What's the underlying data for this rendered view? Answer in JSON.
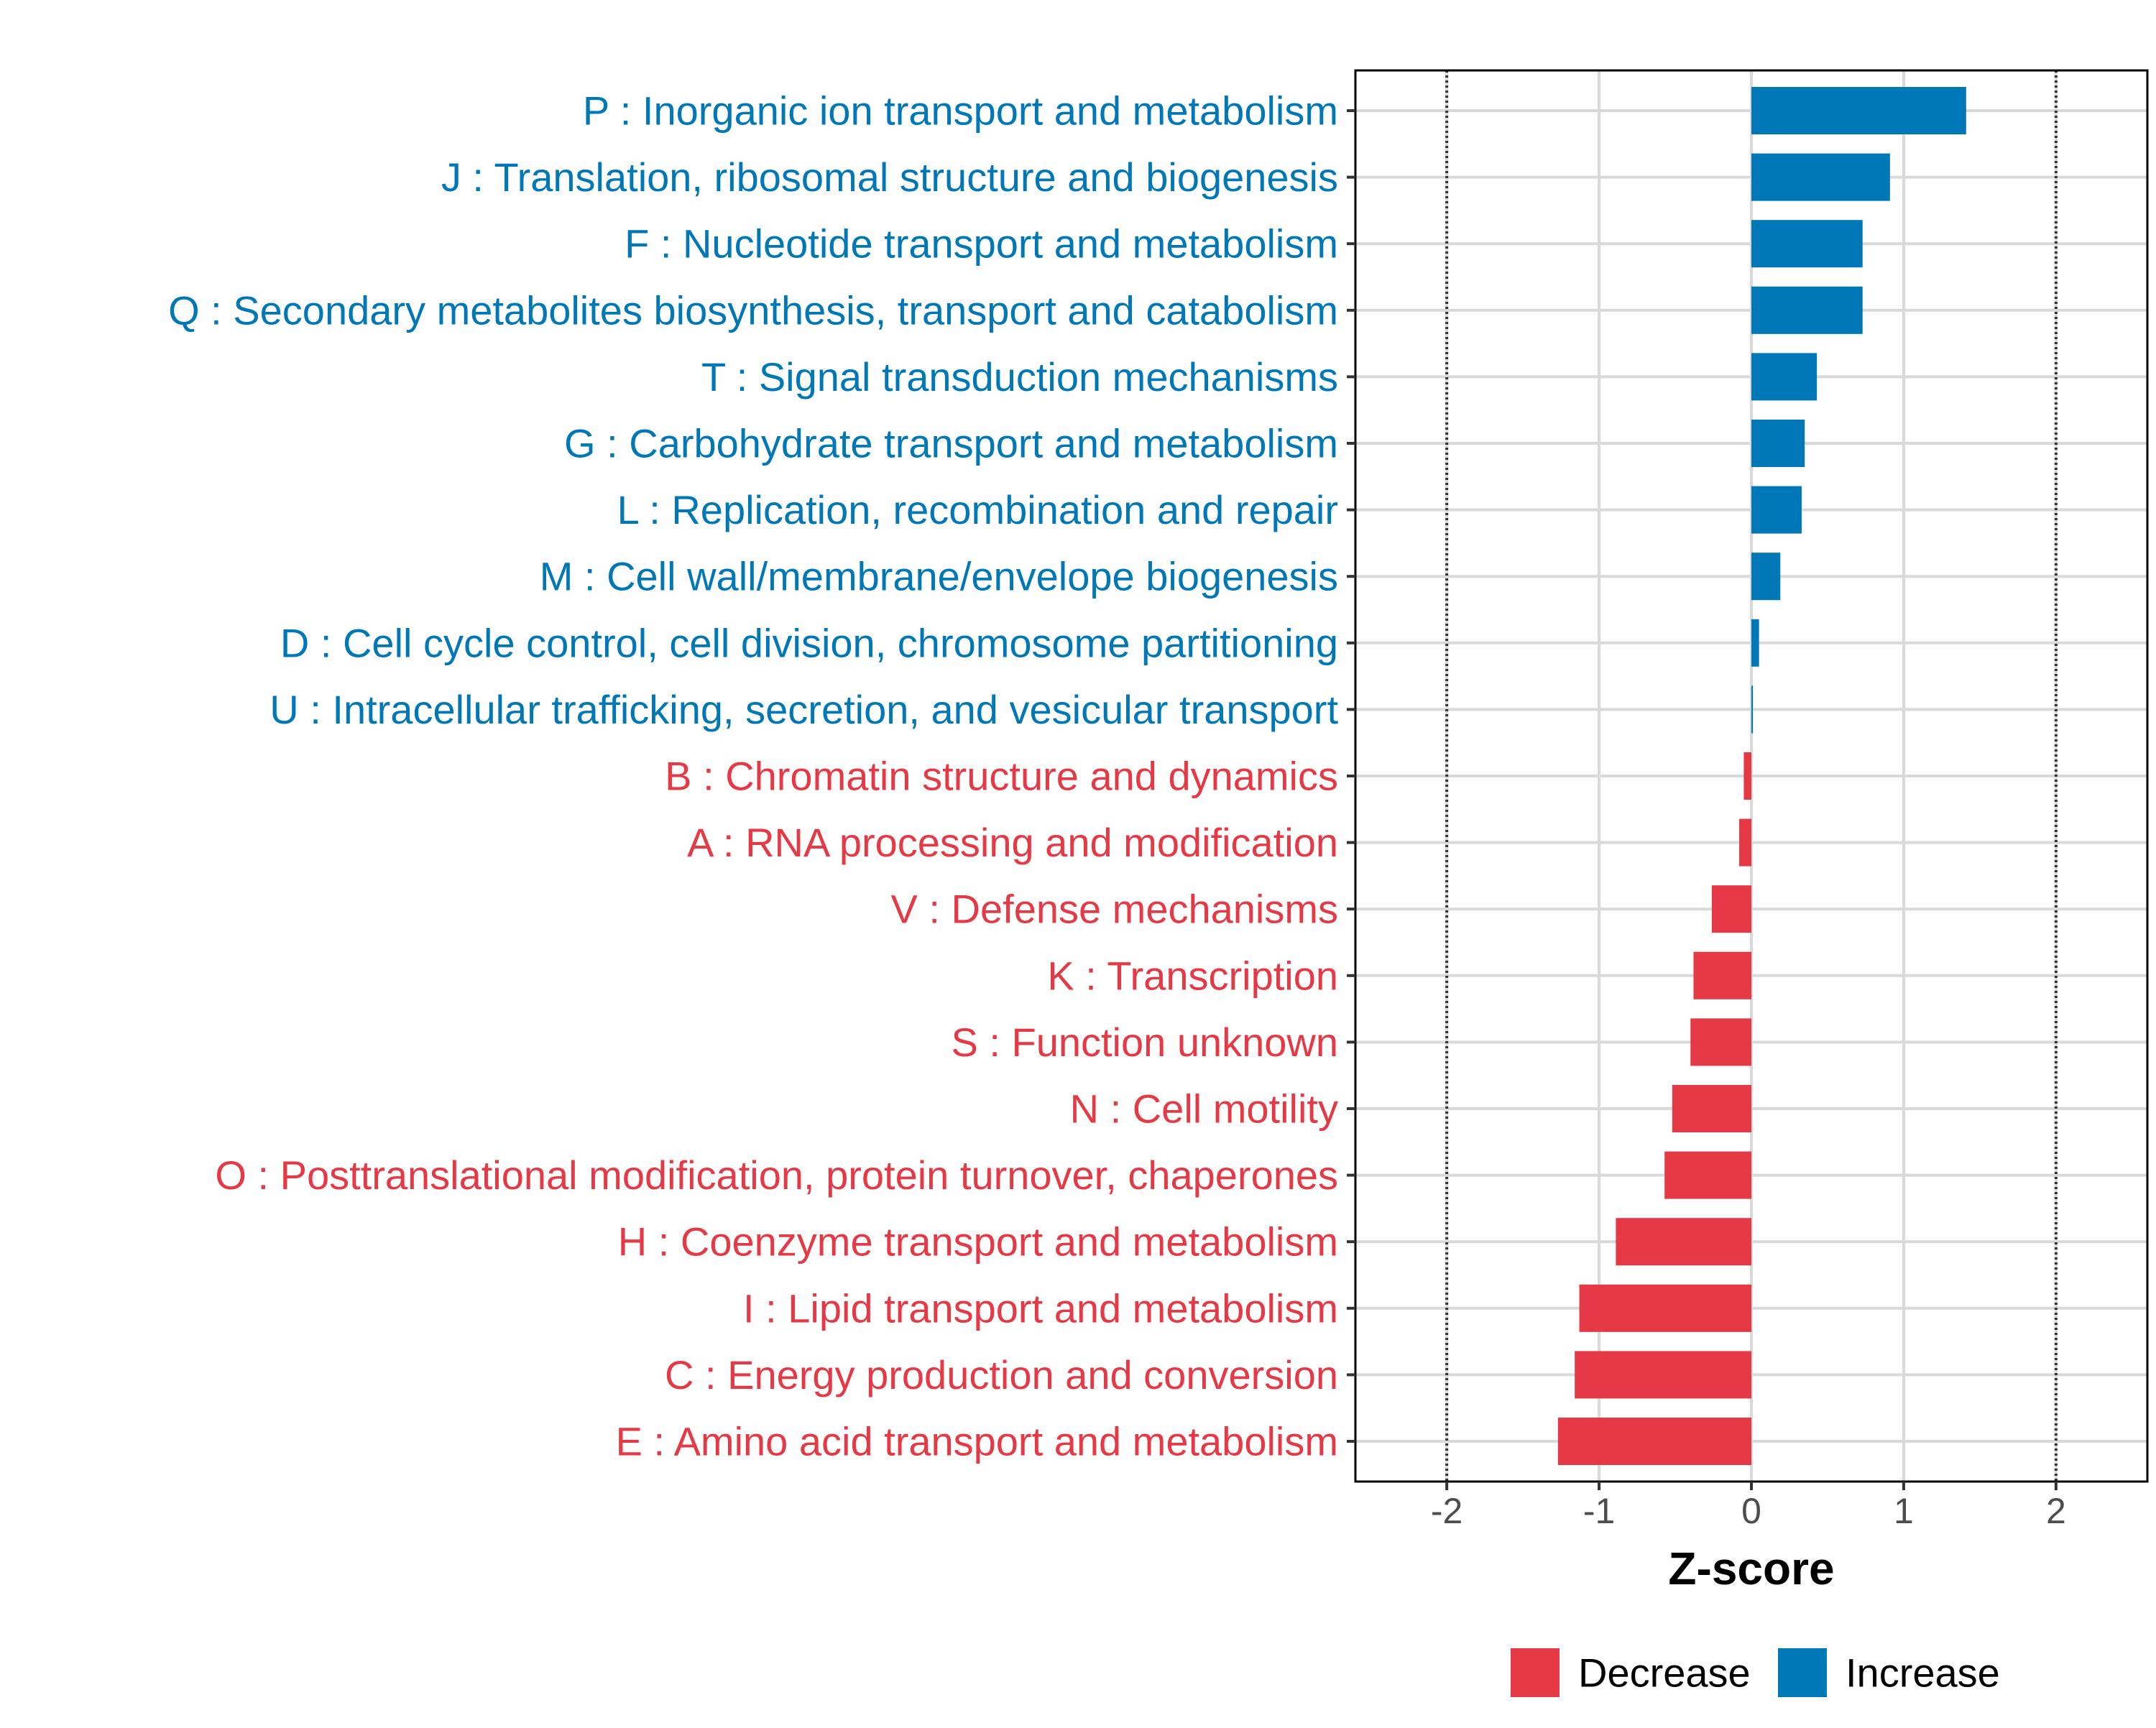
{
  "chart_data": {
    "type": "bar",
    "orientation": "horizontal",
    "title": "",
    "xlabel": "Z-score",
    "ylabel": "",
    "xlim": [
      -2.6,
      2.6
    ],
    "xticks": [
      -2,
      -1,
      0,
      1,
      2
    ],
    "xtick_labels": [
      "-2",
      "-1",
      "0",
      "1",
      "2"
    ],
    "reference_lines": [
      -2,
      2
    ],
    "grid": true,
    "categories": [
      "P : Inorganic ion transport and metabolism",
      "J : Translation, ribosomal structure and biogenesis",
      "F : Nucleotide transport and metabolism",
      "Q : Secondary metabolites biosynthesis, transport and catabolism",
      "T : Signal transduction mechanisms",
      "G : Carbohydrate transport and metabolism",
      "L : Replication, recombination and repair",
      "M : Cell wall/membrane/envelope biogenesis",
      "D : Cell cycle control, cell division, chromosome partitioning",
      "U : Intracellular trafficking, secretion, and vesicular transport",
      "B : Chromatin structure and dynamics",
      "A : RNA processing and modification",
      "V : Defense mechanisms",
      "K : Transcription",
      "S : Function unknown",
      "N : Cell motility",
      "O : Posttranslational modification, protein turnover, chaperones",
      "H : Coenzyme transport and metabolism",
      "I : Lipid transport and metabolism",
      "C : Energy production and conversion",
      "E : Amino acid transport and metabolism"
    ],
    "values": [
      1.41,
      0.91,
      0.73,
      0.73,
      0.43,
      0.35,
      0.33,
      0.19,
      0.05,
      0.01,
      -0.05,
      -0.08,
      -0.26,
      -0.38,
      -0.4,
      -0.52,
      -0.57,
      -0.89,
      -1.13,
      -1.16,
      -1.27
    ],
    "groups": [
      "Increase",
      "Increase",
      "Increase",
      "Increase",
      "Increase",
      "Increase",
      "Increase",
      "Increase",
      "Increase",
      "Increase",
      "Decrease",
      "Decrease",
      "Decrease",
      "Decrease",
      "Decrease",
      "Decrease",
      "Decrease",
      "Decrease",
      "Decrease",
      "Decrease",
      "Decrease"
    ],
    "legend": [
      {
        "name": "Decrease",
        "color": "#e63946"
      },
      {
        "name": "Increase",
        "color": "#0077b6"
      }
    ],
    "legend_position": "bottom"
  }
}
